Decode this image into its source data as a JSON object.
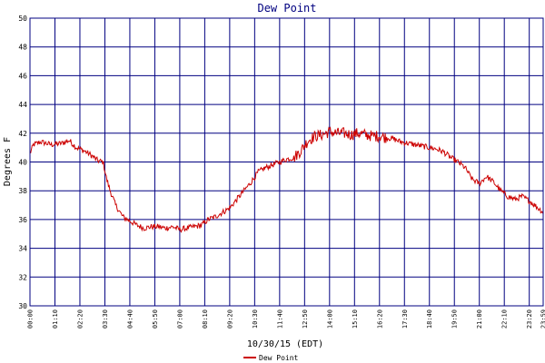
{
  "chart_data": {
    "type": "line",
    "title": "Dew Point",
    "xlabel": "10/30/15 (EDT)",
    "ylabel": "Degrees F",
    "ylim": [
      30,
      50
    ],
    "yticks": [
      "30",
      "32",
      "34",
      "36",
      "38",
      "40",
      "42",
      "44",
      "46",
      "48",
      "50"
    ],
    "xlim_minutes": [
      0,
      1439
    ],
    "xticks": [
      {
        "label": "00:00",
        "minute": 0
      },
      {
        "label": "01:10",
        "minute": 70
      },
      {
        "label": "02:20",
        "minute": 140
      },
      {
        "label": "03:30",
        "minute": 210
      },
      {
        "label": "04:40",
        "minute": 280
      },
      {
        "label": "05:50",
        "minute": 350
      },
      {
        "label": "07:00",
        "minute": 420
      },
      {
        "label": "08:10",
        "minute": 490
      },
      {
        "label": "09:20",
        "minute": 560
      },
      {
        "label": "10:30",
        "minute": 630
      },
      {
        "label": "11:40",
        "minute": 700
      },
      {
        "label": "12:50",
        "minute": 770
      },
      {
        "label": "14:00",
        "minute": 840
      },
      {
        "label": "15:10",
        "minute": 910
      },
      {
        "label": "16:20",
        "minute": 980
      },
      {
        "label": "17:30",
        "minute": 1050
      },
      {
        "label": "18:40",
        "minute": 1120
      },
      {
        "label": "19:50",
        "minute": 1190
      },
      {
        "label": "21:00",
        "minute": 1260
      },
      {
        "label": "22:10",
        "minute": 1330
      },
      {
        "label": "23:20",
        "minute": 1400
      },
      {
        "label": "23:59",
        "minute": 1439
      }
    ],
    "grid": true,
    "legend_position": "bottom",
    "colors": {
      "background": "#ffffff",
      "grid": "#000080",
      "line": "#cc0000",
      "title": "#000080"
    },
    "series": [
      {
        "name": "Dew Point",
        "x_minutes": [
          0,
          10,
          30,
          60,
          90,
          110,
          130,
          150,
          170,
          190,
          205,
          215,
          225,
          240,
          260,
          280,
          300,
          320,
          340,
          360,
          380,
          400,
          420,
          440,
          460,
          480,
          500,
          520,
          540,
          560,
          580,
          600,
          620,
          640,
          660,
          680,
          700,
          720,
          740,
          760,
          780,
          800,
          820,
          840,
          860,
          880,
          900,
          920,
          940,
          960,
          980,
          1000,
          1020,
          1040,
          1060,
          1080,
          1100,
          1120,
          1140,
          1160,
          1180,
          1200,
          1220,
          1240,
          1260,
          1280,
          1300,
          1320,
          1340,
          1360,
          1380,
          1400,
          1420,
          1439
        ],
        "values": [
          40.6,
          41.2,
          41.4,
          41.2,
          41.3,
          41.5,
          41.0,
          40.8,
          40.5,
          40.1,
          40.0,
          38.8,
          38.0,
          37.0,
          36.2,
          35.9,
          35.6,
          35.4,
          35.5,
          35.5,
          35.4,
          35.5,
          35.3,
          35.4,
          35.5,
          35.6,
          36.0,
          36.2,
          36.5,
          36.8,
          37.4,
          38.0,
          38.6,
          39.3,
          39.6,
          39.8,
          40.0,
          40.2,
          40.3,
          40.8,
          41.5,
          41.8,
          41.9,
          42.1,
          42.0,
          42.0,
          41.9,
          42.0,
          41.9,
          41.8,
          41.8,
          41.7,
          41.6,
          41.4,
          41.3,
          41.2,
          41.1,
          41.0,
          40.9,
          40.7,
          40.3,
          40.0,
          39.6,
          38.8,
          38.5,
          39.0,
          38.6,
          38.0,
          37.6,
          37.4,
          37.6,
          37.3,
          36.9,
          36.5
        ]
      }
    ]
  }
}
